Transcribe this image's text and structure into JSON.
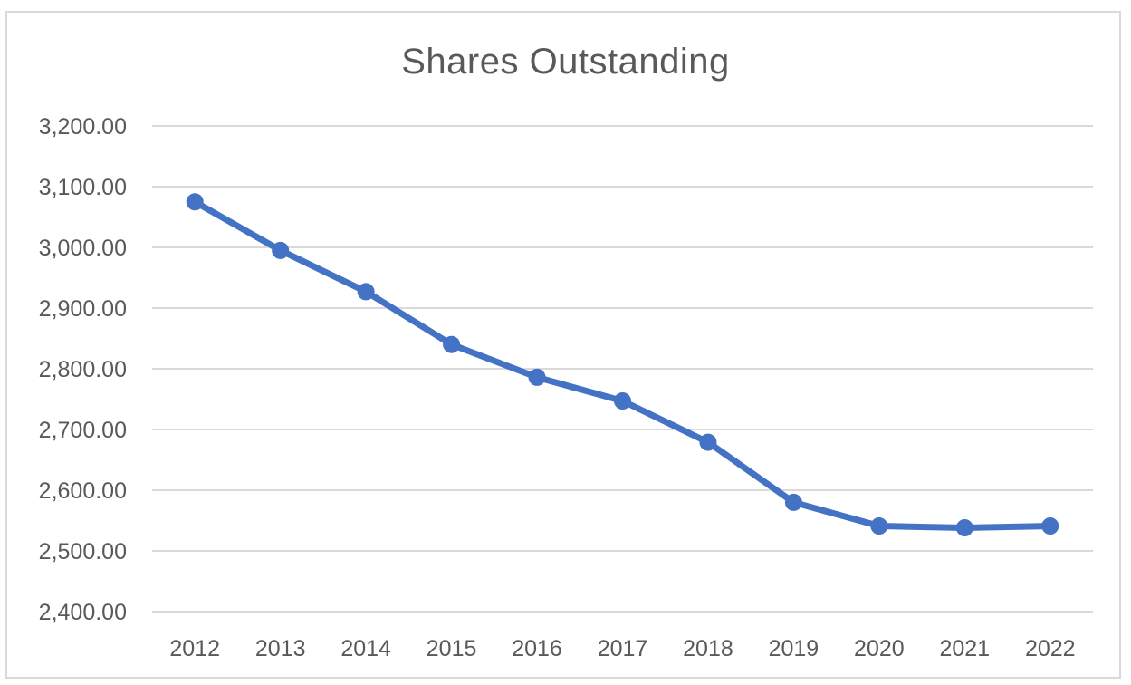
{
  "chart_data": {
    "type": "line",
    "title": "Shares Outstanding",
    "xlabel": "",
    "ylabel": "",
    "categories": [
      "2012",
      "2013",
      "2014",
      "2015",
      "2016",
      "2017",
      "2018",
      "2019",
      "2020",
      "2021",
      "2022"
    ],
    "series": [
      {
        "values": [
          3075,
          2995,
          2927,
          2840,
          2786,
          2747,
          2679,
          2580,
          2541,
          2538,
          2541
        ],
        "color": "#4472c4",
        "markers": true
      }
    ],
    "ylim": [
      2400,
      3200
    ],
    "yticks": [
      2400,
      2500,
      2600,
      2700,
      2800,
      2900,
      3000,
      3100,
      3200
    ],
    "ytick_labels": [
      "2,400.00",
      "2,500.00",
      "2,600.00",
      "2,700.00",
      "2,800.00",
      "2,900.00",
      "3,000.00",
      "3,100.00",
      "3,200.00"
    ],
    "grid": true,
    "legend": "none",
    "colors": {
      "line": "#4472c4",
      "grid": "#d9d9d9",
      "text": "#595959",
      "border": "#d9d9d9"
    }
  }
}
